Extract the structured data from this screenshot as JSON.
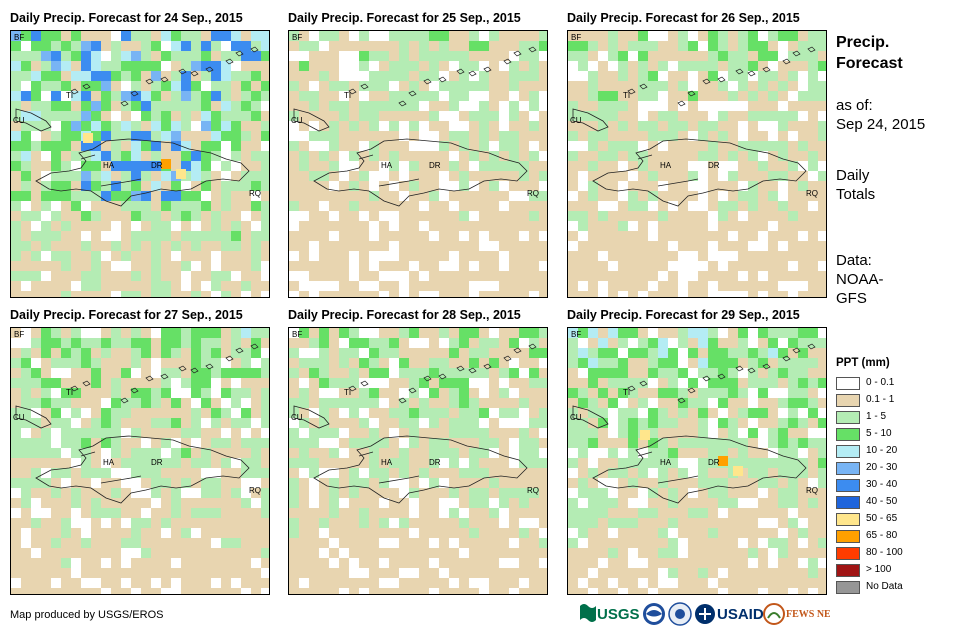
{
  "panels": [
    {
      "title": "Daily Precip. Forecast for 24 Sep., 2015",
      "seed": 24,
      "wet": 0.9
    },
    {
      "title": "Daily Precip. Forecast for 25 Sep., 2015",
      "seed": 25,
      "wet": 0.45
    },
    {
      "title": "Daily Precip. Forecast for 26 Sep., 2015",
      "seed": 26,
      "wet": 0.5
    },
    {
      "title": "Daily Precip. Forecast for 27 Sep., 2015",
      "seed": 27,
      "wet": 0.6
    },
    {
      "title": "Daily Precip. Forecast for 28 Sep., 2015",
      "seed": 28,
      "wet": 0.55
    },
    {
      "title": "Daily Precip. Forecast for 29 Sep., 2015",
      "seed": 29,
      "wet": 0.65
    }
  ],
  "map_labels": {
    "bf": "BF",
    "cu": "CU",
    "ti": "TI",
    "ha": "HA",
    "dr": "DR",
    "rq": "RQ"
  },
  "side": {
    "title_line1": "Precip.",
    "title_line2": "Forecast",
    "asof_line1": "as of:",
    "asof_line2": "Sep 24, 2015",
    "daily_line1": "Daily",
    "daily_line2": "Totals",
    "data_line1": "Data:",
    "data_line2": "NOAA-",
    "data_line3": "GFS"
  },
  "legend": {
    "title": "PPT (mm)",
    "items": [
      {
        "label": "0 - 0.1",
        "color": "#ffffff"
      },
      {
        "label": "0.1 - 1",
        "color": "#e8d5b0"
      },
      {
        "label": "1 - 5",
        "color": "#b4ecb4"
      },
      {
        "label": "5 - 10",
        "color": "#66e066"
      },
      {
        "label": "10 - 20",
        "color": "#b4ecf4"
      },
      {
        "label": "20 - 30",
        "color": "#78b4f4"
      },
      {
        "label": "30 - 40",
        "color": "#3c8cf0"
      },
      {
        "label": "40 - 50",
        "color": "#1e64dc"
      },
      {
        "label": "50 - 65",
        "color": "#ffe68c"
      },
      {
        "label": "65 - 80",
        "color": "#ffa000"
      },
      {
        "label": "80 - 100",
        "color": "#ff3c00"
      },
      {
        "label": "> 100",
        "color": "#a01414"
      },
      {
        "label": "No Data",
        "color": "#969696"
      }
    ]
  },
  "credit": "Map produced by USGS/EROS",
  "logos": {
    "usgs": "USGS",
    "usaid": "USAID",
    "fewsnet": "FEWS NET"
  }
}
